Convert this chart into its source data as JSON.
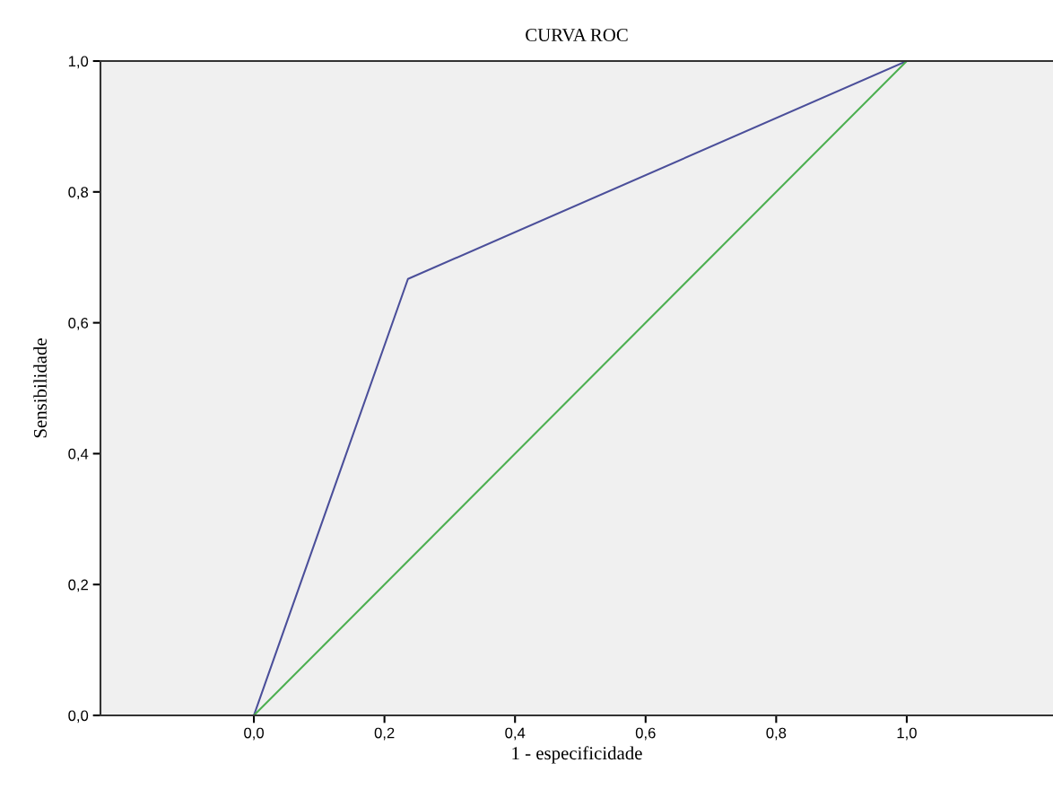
{
  "chart_data": {
    "type": "line",
    "title": "CURVA ROC",
    "xlabel": "1 - especificidade",
    "ylabel": "Sensibilidade",
    "series": [
      {
        "x": [
          0,
          0.236,
          1
        ],
        "values": [
          0,
          0.667,
          1
        ],
        "color": "#4b4f9a"
      },
      {
        "x": [
          0,
          1
        ],
        "values": [
          0,
          1
        ],
        "color": "#4caf50"
      }
    ],
    "xlim": [
      -0.235,
      1.224
    ],
    "ylim": [
      0,
      1
    ],
    "xticks": [
      {
        "value": 0,
        "label": "0,0"
      },
      {
        "value": 0.2,
        "label": "0,2"
      },
      {
        "value": 0.4,
        "label": "0,4"
      },
      {
        "value": 0.6,
        "label": "0,6"
      },
      {
        "value": 0.8,
        "label": "0,8"
      },
      {
        "value": 1,
        "label": "1,0"
      }
    ],
    "yticks": [
      {
        "value": 0,
        "label": "0,0"
      },
      {
        "value": 0.2,
        "label": "0,2"
      },
      {
        "value": 0.4,
        "label": "0,4"
      },
      {
        "value": 0.6,
        "label": "0,6"
      },
      {
        "value": 0.8,
        "label": "0,8"
      },
      {
        "value": 1,
        "label": "1,0"
      }
    ],
    "grid": false,
    "marker": "none",
    "line_style": "solid"
  }
}
